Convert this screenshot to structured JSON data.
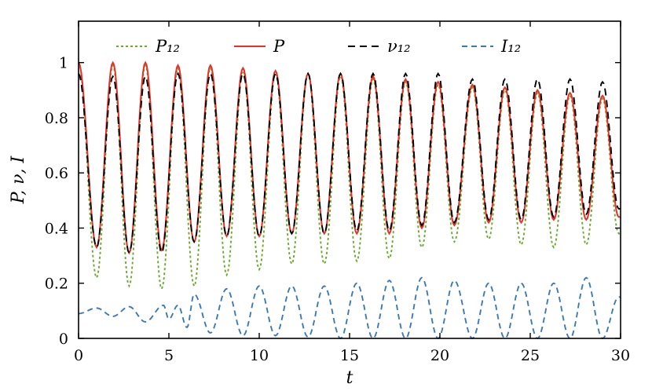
{
  "chart_data": {
    "type": "line",
    "title": "",
    "xlabel": "t",
    "ylabel": "P, ν, I",
    "xlim": [
      0,
      30
    ],
    "ylim": [
      0,
      1.15
    ],
    "xticks": [
      0,
      5,
      10,
      15,
      20,
      25,
      30
    ],
    "xtick_labels": [
      "0",
      "5",
      "10",
      "15",
      "20",
      "25",
      "30"
    ],
    "yticks": [
      0,
      0.2,
      0.4,
      0.6,
      0.8,
      1
    ],
    "ytick_labels": [
      "0",
      "0.2",
      "0.4",
      "0.6",
      "0.8",
      "1"
    ],
    "grid": false,
    "legend_position": "top",
    "series": [
      {
        "name": "P₁₂",
        "color": "#6aaa2a",
        "style": "dotted",
        "peaks_t": [
          0,
          1.9,
          3.7,
          5.5,
          7.3,
          9.1,
          10.9,
          12.7,
          14.5,
          16.3,
          18.1,
          19.9,
          21.8,
          23.6,
          25.4,
          27.2,
          29.0
        ],
        "peaks_y": [
          1.0,
          0.99,
          0.99,
          0.98,
          0.98,
          0.97,
          0.96,
          0.96,
          0.95,
          0.94,
          0.93,
          0.92,
          0.91,
          0.9,
          0.89,
          0.88,
          0.87
        ],
        "troughs_t": [
          1.0,
          2.8,
          4.6,
          6.4,
          8.2,
          10.0,
          11.8,
          13.6,
          15.4,
          17.2,
          19.0,
          20.8,
          22.7,
          24.5,
          26.3,
          28.1,
          29.9
        ],
        "troughs_y": [
          0.22,
          0.19,
          0.18,
          0.19,
          0.23,
          0.25,
          0.27,
          0.27,
          0.28,
          0.29,
          0.33,
          0.35,
          0.36,
          0.34,
          0.33,
          0.34,
          0.38
        ]
      },
      {
        "name": "P",
        "color": "#e8302a",
        "style": "solid",
        "peaks_t": [
          0,
          1.9,
          3.7,
          5.5,
          7.3,
          9.1,
          10.9,
          12.7,
          14.5,
          16.3,
          18.1,
          19.9,
          21.8,
          23.6,
          25.4,
          27.2,
          29.0
        ],
        "peaks_y": [
          1.0,
          1.0,
          1.0,
          0.99,
          0.99,
          0.98,
          0.97,
          0.96,
          0.96,
          0.95,
          0.94,
          0.93,
          0.92,
          0.91,
          0.9,
          0.89,
          0.88
        ],
        "troughs_t": [
          1.0,
          2.8,
          4.6,
          6.4,
          8.2,
          10.0,
          11.8,
          13.6,
          15.4,
          17.2,
          19.0,
          20.8,
          22.7,
          24.5,
          26.3,
          28.1,
          29.9
        ],
        "troughs_y": [
          0.33,
          0.31,
          0.32,
          0.35,
          0.37,
          0.37,
          0.38,
          0.38,
          0.38,
          0.38,
          0.4,
          0.41,
          0.42,
          0.42,
          0.43,
          0.43,
          0.44
        ]
      },
      {
        "name": "ν₁₂",
        "color": "#000000",
        "style": "dashed",
        "peaks_t": [
          0,
          1.9,
          3.7,
          5.5,
          7.3,
          9.1,
          10.9,
          12.7,
          14.5,
          16.3,
          18.1,
          19.9,
          21.8,
          23.6,
          25.4,
          27.2,
          29.0
        ],
        "peaks_y": [
          0.96,
          0.95,
          0.95,
          0.96,
          0.96,
          0.96,
          0.96,
          0.96,
          0.96,
          0.96,
          0.96,
          0.96,
          0.94,
          0.94,
          0.94,
          0.94,
          0.93
        ],
        "troughs_t": [
          1.0,
          2.8,
          4.6,
          6.4,
          8.2,
          10.0,
          11.8,
          13.6,
          15.4,
          17.2,
          19.0,
          20.8,
          22.7,
          24.5,
          26.3,
          28.1,
          29.9
        ],
        "troughs_y": [
          0.33,
          0.31,
          0.31,
          0.35,
          0.37,
          0.37,
          0.38,
          0.38,
          0.39,
          0.39,
          0.41,
          0.42,
          0.43,
          0.43,
          0.44,
          0.45,
          0.47
        ]
      },
      {
        "name": "I₁₂",
        "color": "#3c7ab4",
        "style": "dashdot",
        "peaks_t": [
          1.0,
          2.8,
          4.7,
          5.5,
          6.4,
          8.2,
          10.0,
          11.8,
          13.6,
          15.4,
          17.2,
          19.0,
          20.8,
          22.7,
          24.5,
          26.3,
          28.1,
          29.9
        ],
        "peaks_y": [
          0.11,
          0.115,
          0.12,
          0.12,
          0.16,
          0.18,
          0.19,
          0.19,
          0.19,
          0.2,
          0.21,
          0.22,
          0.21,
          0.2,
          0.2,
          0.2,
          0.22,
          0.15
        ],
        "troughs_t": [
          0,
          1.9,
          3.7,
          5.0,
          6.0,
          7.3,
          9.1,
          10.9,
          12.7,
          14.5,
          16.3,
          18.1,
          19.9,
          21.8,
          23.6,
          25.4,
          27.2,
          29.0
        ],
        "troughs_y": [
          0.09,
          0.08,
          0.06,
          0.07,
          0.04,
          0.02,
          0.01,
          0.01,
          0.005,
          0.0,
          0.0,
          0.0,
          0.0,
          0.0,
          0.0,
          0.0,
          0.0,
          0.0
        ]
      }
    ]
  }
}
